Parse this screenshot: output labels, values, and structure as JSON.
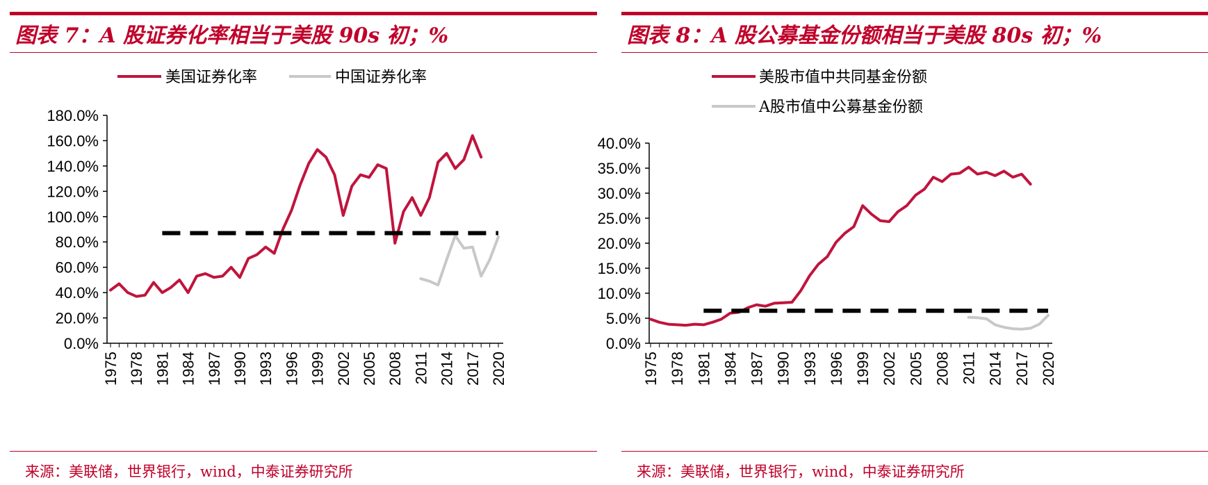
{
  "charts": [
    {
      "title": "图表 7：A 股证券化率相当于美股 90s 初；%",
      "source": "来源：美联储，世界银行，wind，中泰证券研究所",
      "legend": [
        "美国证券化率",
        "中国证券化率"
      ],
      "yticks": [
        "0.0%",
        "20.0%",
        "40.0%",
        "60.0%",
        "80.0%",
        "100.0%",
        "120.0%",
        "140.0%",
        "160.0%",
        "180.0%"
      ],
      "xticks": [
        "1975",
        "1978",
        "1981",
        "1984",
        "1987",
        "1990",
        "1993",
        "1996",
        "1999",
        "2002",
        "2005",
        "2008",
        "2011",
        "2014",
        "2017",
        "2020"
      ]
    },
    {
      "title": "图表 8：A 股公募基金份额相当于美股 80s 初；%",
      "source": "来源：美联储，世界银行，wind，中泰证券研究所",
      "legend": [
        "美股市值中共同基金份额",
        "A股市值中公募基金份额"
      ],
      "yticks": [
        "0.0%",
        "5.0%",
        "10.0%",
        "15.0%",
        "20.0%",
        "25.0%",
        "30.0%",
        "35.0%",
        "40.0%"
      ],
      "xticks": [
        "1975",
        "1978",
        "1981",
        "1984",
        "1987",
        "1990",
        "1993",
        "1996",
        "1999",
        "2002",
        "2005",
        "2008",
        "2011",
        "2014",
        "2017",
        "2020"
      ]
    }
  ],
  "chart_data": [
    {
      "type": "line",
      "title": "图表 7：A 股证券化率相当于美股 90s 初；%",
      "ylim": [
        0,
        180
      ],
      "xlim": [
        1975,
        2020
      ],
      "grid": false,
      "legend_position": "top",
      "series": [
        {
          "name": "美国证券化率",
          "color": "#c0143c",
          "x": [
            1975,
            1976,
            1977,
            1978,
            1979,
            1980,
            1981,
            1982,
            1983,
            1984,
            1985,
            1986,
            1987,
            1988,
            1989,
            1990,
            1991,
            1992,
            1993,
            1994,
            1995,
            1996,
            1997,
            1998,
            1999,
            2000,
            2001,
            2002,
            2003,
            2004,
            2005,
            2006,
            2007,
            2008,
            2009,
            2010,
            2011,
            2012,
            2013,
            2014,
            2015,
            2016,
            2017,
            2018
          ],
          "y": [
            42,
            47,
            40,
            37,
            38,
            48,
            40,
            44,
            50,
            40,
            53,
            55,
            52,
            53,
            60,
            52,
            67,
            70,
            76,
            71,
            90,
            105,
            125,
            142,
            153,
            147,
            133,
            101,
            124,
            133,
            131,
            141,
            138,
            79,
            104,
            115,
            101,
            115,
            143,
            150,
            138,
            145,
            164,
            147
          ]
        },
        {
          "name": "中国证券化率",
          "color": "#c8c8c8",
          "x": [
            2011,
            2012,
            2013,
            2014,
            2015,
            2016,
            2017,
            2018,
            2019,
            2020
          ],
          "y": [
            51,
            49,
            46,
            66,
            85,
            75,
            76,
            53,
            66,
            84
          ]
        },
        {
          "name": "",
          "style": "dashed",
          "color": "#000000",
          "x": [
            1981,
            2020
          ],
          "y": [
            87,
            87
          ]
        }
      ]
    },
    {
      "type": "line",
      "title": "图表 8：A 股公募基金份额相当于美股 80s 初；%",
      "ylim": [
        0,
        40
      ],
      "xlim": [
        1975,
        2020
      ],
      "grid": false,
      "legend_position": "top",
      "series": [
        {
          "name": "美股市值中共同基金份额",
          "color": "#c0143c",
          "x": [
            1975,
            1976,
            1977,
            1978,
            1979,
            1980,
            1981,
            1982,
            1983,
            1984,
            1985,
            1986,
            1987,
            1988,
            1989,
            1990,
            1991,
            1992,
            1993,
            1994,
            1995,
            1996,
            1997,
            1998,
            1999,
            2000,
            2001,
            2002,
            2003,
            2004,
            2005,
            2006,
            2007,
            2008,
            2009,
            2010,
            2011,
            2012,
            2013,
            2014,
            2015,
            2016,
            2017,
            2018
          ],
          "y": [
            4.8,
            4.2,
            3.8,
            3.7,
            3.6,
            3.8,
            3.7,
            4.2,
            4.8,
            6.0,
            6.2,
            7.1,
            7.7,
            7.4,
            8.0,
            8.1,
            8.2,
            10.5,
            13.5,
            15.8,
            17.3,
            20.2,
            22.0,
            23.3,
            27.5,
            25.8,
            24.5,
            24.3,
            26.3,
            27.5,
            29.6,
            30.8,
            33.2,
            32.3,
            33.8,
            34.0,
            35.2,
            33.8,
            34.2,
            33.5,
            34.4,
            33.2,
            33.8,
            31.8
          ]
        },
        {
          "name": "A股市值中公募基金份额",
          "color": "#c8c8c8",
          "x": [
            2011,
            2012,
            2013,
            2014,
            2015,
            2016,
            2017,
            2018,
            2019,
            2020
          ],
          "y": [
            5.2,
            5.1,
            4.9,
            3.7,
            3.2,
            2.9,
            2.8,
            3.0,
            3.8,
            5.6
          ]
        },
        {
          "name": "",
          "style": "dashed",
          "color": "#000000",
          "x": [
            1981,
            2020
          ],
          "y": [
            6.5,
            6.5
          ]
        }
      ]
    }
  ]
}
